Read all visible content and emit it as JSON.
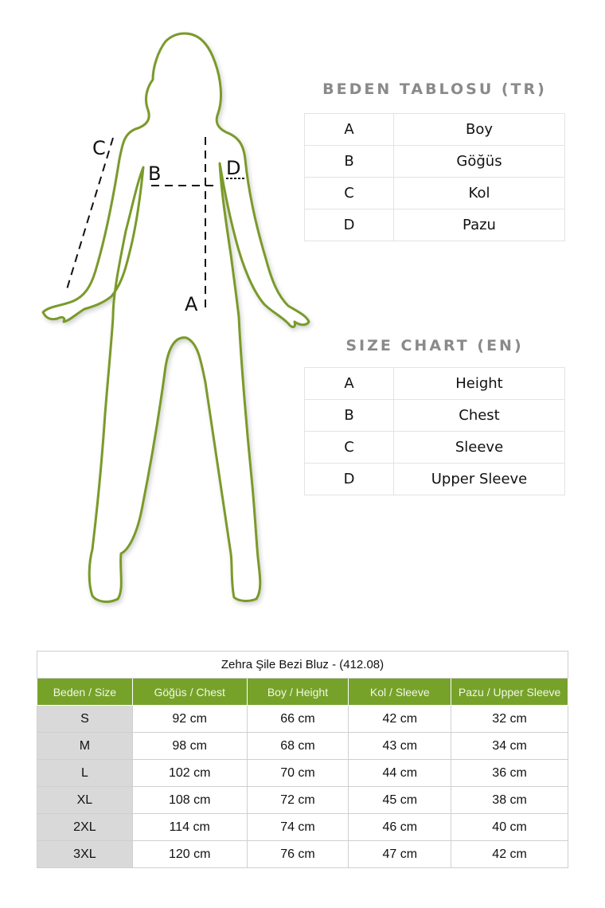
{
  "figure": {
    "labels": {
      "a": "A",
      "b": "B",
      "c": "C",
      "d": "D"
    },
    "outline_color": "#7a9a2a"
  },
  "tr": {
    "title": "BEDEN TABLOSU (TR)",
    "rows": [
      {
        "k": "A",
        "v": "Boy"
      },
      {
        "k": "B",
        "v": "Göğüs"
      },
      {
        "k": "C",
        "v": "Kol"
      },
      {
        "k": "D",
        "v": "Pazu"
      }
    ]
  },
  "en": {
    "title": "SIZE CHART (EN)",
    "rows": [
      {
        "k": "A",
        "v": "Height"
      },
      {
        "k": "B",
        "v": "Chest"
      },
      {
        "k": "C",
        "v": "Sleeve"
      },
      {
        "k": "D",
        "v": "Upper Sleeve"
      }
    ]
  },
  "size_table": {
    "title": "Zehra Şile Bezi Bluz - (412.08)",
    "header_color": "#76a22a",
    "headers": [
      "Beden / Size",
      "Göğüs / Chest",
      "Boy / Height",
      "Kol / Sleeve",
      "Pazu / Upper Sleeve"
    ],
    "rows": [
      [
        "S",
        "92 cm",
        "66 cm",
        "42 cm",
        "32 cm"
      ],
      [
        "M",
        "98 cm",
        "68 cm",
        "43 cm",
        "34 cm"
      ],
      [
        "L",
        "102 cm",
        "70 cm",
        "44 cm",
        "36 cm"
      ],
      [
        "XL",
        "108 cm",
        "72 cm",
        "45 cm",
        "38 cm"
      ],
      [
        "2XL",
        "114 cm",
        "74 cm",
        "46 cm",
        "40 cm"
      ],
      [
        "3XL",
        "120 cm",
        "76 cm",
        "47 cm",
        "42 cm"
      ]
    ]
  }
}
